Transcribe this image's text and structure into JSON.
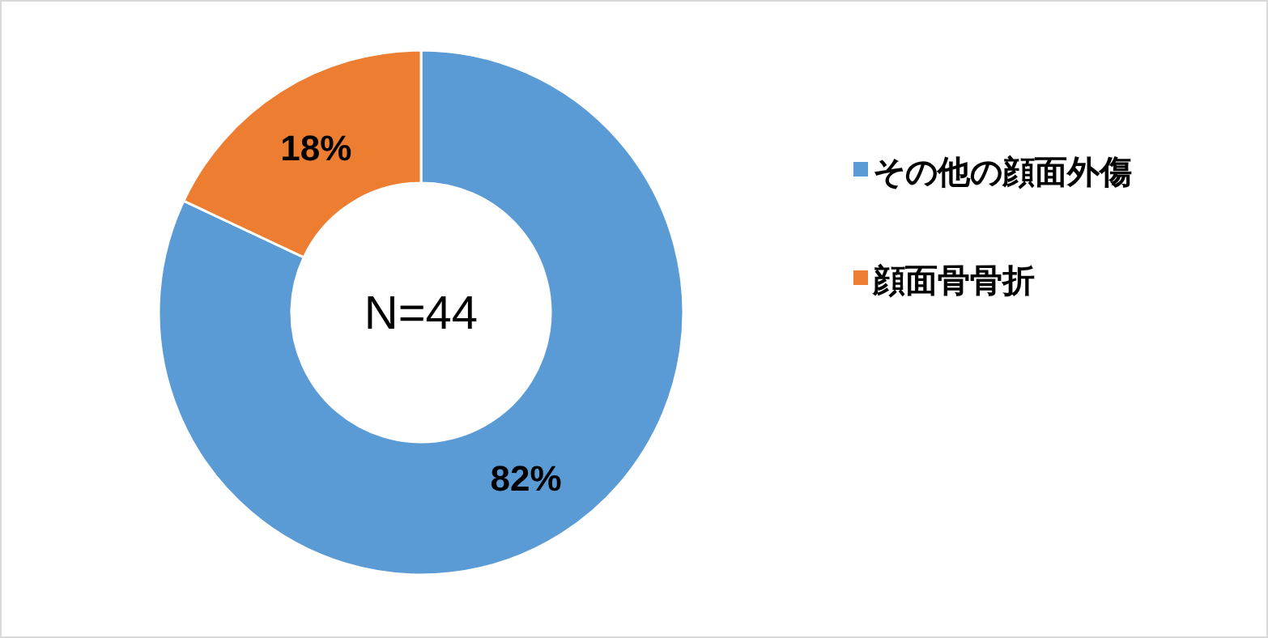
{
  "chart_data": {
    "type": "donut",
    "categories": [
      "その他の顔面外傷",
      "顔面骨骨折"
    ],
    "values": [
      82,
      18
    ],
    "colors": [
      "#5b9bd5",
      "#ed7d31"
    ],
    "value_labels": [
      "82%",
      "18%"
    ],
    "annotations": [
      "N=44"
    ],
    "legend": "right"
  }
}
